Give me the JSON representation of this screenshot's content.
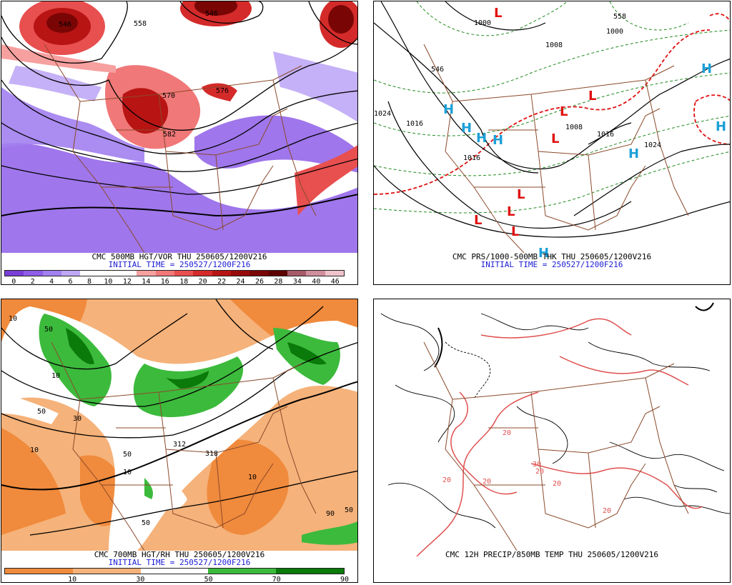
{
  "panels": [
    {
      "title": "CMC 500MB HGT/VOR THU 250605/1200V216",
      "initial_time": "INITIAL TIME = 250527/1200F216",
      "colorbar": {
        "labels": [
          "0",
          "2",
          "4",
          "6",
          "8",
          "10",
          "12",
          "14",
          "16",
          "18",
          "20",
          "22",
          "24",
          "26",
          "28",
          "34",
          "40",
          "46"
        ],
        "colors": [
          "#7a3fd6",
          "#8e5ee8",
          "#a280f0",
          "#bfa8f6",
          "#ffffff",
          "#ffffff",
          "#ffffff",
          "#f6a0a0",
          "#f07878",
          "#e84f4f",
          "#d42a2a",
          "#b81414",
          "#980a0a",
          "#7a0505",
          "#5e0000",
          "#a85a6a",
          "#d08e9e",
          "#f0c2cc"
        ]
      },
      "contour_labels": [
        "546",
        "558",
        "570",
        "582",
        "546",
        "576"
      ]
    },
    {
      "title": "CMC PRS/1000-500MB THK THU 250605/1200V216",
      "initial_time": "INITIAL TIME = 250527/1200F216",
      "contour_labels": [
        "1000",
        "1008",
        "1000",
        "1016",
        "1008",
        "1016",
        "1024",
        "1024",
        "1016",
        "558",
        "546"
      ],
      "pressure_centers": [
        "L",
        "L",
        "L",
        "L",
        "L",
        "L",
        "L",
        "L",
        "H",
        "H",
        "H",
        "H",
        "H",
        "H",
        "H",
        "H"
      ]
    },
    {
      "title": "CMC 700MB HGT/RH THU 250605/1200V216",
      "initial_time": "INITIAL TIME = 250527/1200F216",
      "colorbar": {
        "labels": [
          "10",
          "30",
          "50",
          "70",
          "90"
        ],
        "colors": [
          "#f08a3c",
          "#f5b27a",
          "#ffffff",
          "#3cba3c",
          "#0a7a0a"
        ]
      },
      "contour_labels": [
        "10",
        "50",
        "10",
        "50",
        "30",
        "10",
        "50",
        "10",
        "50",
        "90",
        "50",
        "312",
        "318",
        "10"
      ]
    },
    {
      "title": "CMC 12H PRECIP/850MB TEMP THU 250605/1200V216",
      "initial_time": "",
      "contour_labels": [
        "20",
        "20",
        "20",
        "30",
        "20",
        "20",
        "20"
      ]
    }
  ],
  "colors": {
    "border": "#8b4a2b",
    "height_contour": "#000000",
    "thickness_dashed": "#1f8a1f",
    "thickness_red": "#e01010",
    "low": "#e01010",
    "high": "#1ca0d8",
    "temp_contour": "#e05050"
  }
}
